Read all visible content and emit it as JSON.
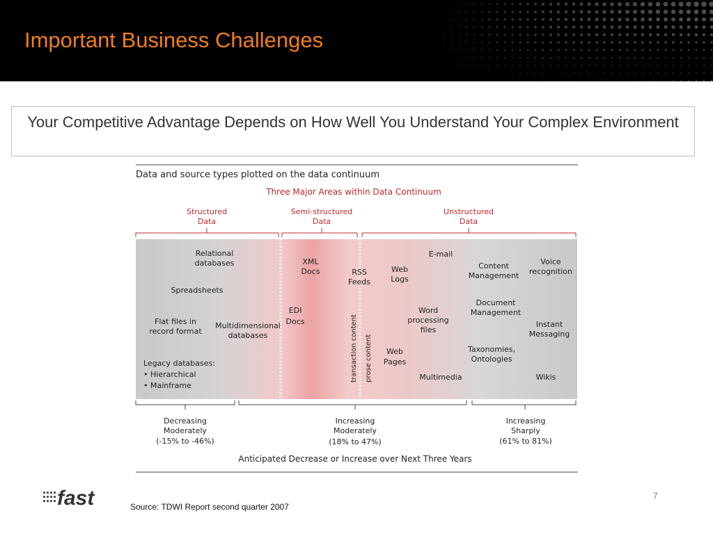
{
  "slide": {
    "title": "Important Business Challenges",
    "subtitle": "Your Competitive Advantage Depends on How Well You Understand Your Complex Environment",
    "source": "Source: TDWI Report second quarter 2007",
    "page_number": "7",
    "logo_text": "fast"
  },
  "diagram": {
    "heading": "Data and source types plotted on the data continuum",
    "areas_title": "Three Major Areas within Data Continuum",
    "areas": [
      {
        "line1": "Structured",
        "line2": "Data"
      },
      {
        "line1": "Semi-structured",
        "line2": "Data"
      },
      {
        "line1": "Unstructured",
        "line2": "Data"
      }
    ],
    "items": {
      "relational": [
        "Relational",
        "databases"
      ],
      "spreadsheets": [
        "Spreadsheets"
      ],
      "flatfiles": [
        "Flat files in",
        "record format"
      ],
      "multidim": [
        "Multidimensional",
        "databases"
      ],
      "legacy": [
        "Legacy databases:",
        "• Hierarchical",
        "• Mainframe"
      ],
      "xml": [
        "XML",
        "Docs"
      ],
      "edi": [
        "EDI",
        "Docs"
      ],
      "rss": [
        "RSS",
        "Feeds"
      ],
      "weblogs": [
        "Web",
        "Logs"
      ],
      "email": [
        "E-mail"
      ],
      "wordproc": [
        "Word",
        "processing",
        "files"
      ],
      "webpages": [
        "Web",
        "Pages"
      ],
      "multimedia": [
        "Multimedia"
      ],
      "content": [
        "Content",
        "Management"
      ],
      "document": [
        "Document",
        "Management"
      ],
      "taxonomies": [
        "Taxonomies,",
        "Ontologies"
      ],
      "voice": [
        "Voice",
        "recognition"
      ],
      "instant": [
        "Instant",
        "Messaging"
      ],
      "wikis": [
        "Wikis"
      ]
    },
    "vertical_labels": [
      "transaction content",
      "prose content"
    ],
    "trends": [
      {
        "line1": "Decreasing",
        "line2": "Moderately",
        "line3": "(-15% to -46%)"
      },
      {
        "line1": "Increasing",
        "line2": "Moderately",
        "line3": "(18% to 47%)"
      },
      {
        "line1": "Increasing",
        "line2": "Sharply",
        "line3": "(61% to 81%)"
      }
    ],
    "footer": "Anticipated Decrease or Increase over Next Three Years",
    "colors": {
      "areas": "#c0282c",
      "band_gray": "#c8c9cc",
      "band_pink": "#eda3a4"
    }
  }
}
